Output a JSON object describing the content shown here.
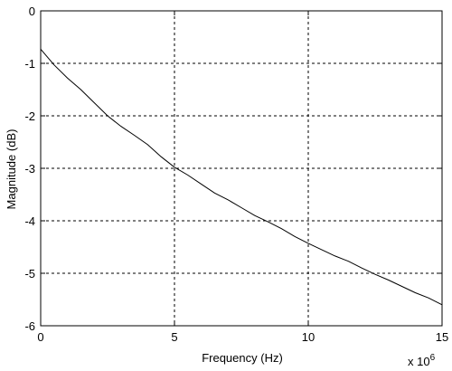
{
  "chart_data": {
    "type": "line",
    "xlabel": "Frequency (Hz)",
    "ylabel": "Magnitude (dB)",
    "x_multiplier_label": "x 10",
    "x_multiplier_exponent": "6",
    "xlim": [
      0,
      15
    ],
    "ylim": [
      -6,
      0
    ],
    "x_ticks": [
      0,
      5,
      10,
      15
    ],
    "y_ticks": [
      0,
      -1,
      -2,
      -3,
      -4,
      -5,
      -6
    ],
    "x_tick_labels": [
      "0",
      "5",
      "10",
      "15"
    ],
    "y_tick_labels": [
      "0",
      "-1",
      "-2",
      "-3",
      "-4",
      "-5",
      "-6"
    ],
    "grid": true,
    "grid_style": "dashed",
    "series": [
      {
        "color": "#000000",
        "x": [
          0,
          0.5,
          1,
          1.5,
          2,
          2.5,
          3,
          3.5,
          4,
          4.5,
          5,
          5.5,
          6,
          6.5,
          7,
          7.5,
          8,
          8.5,
          9,
          9.5,
          10,
          10.5,
          11,
          11.5,
          12,
          12.5,
          13,
          13.5,
          14,
          14.5,
          15
        ],
        "y": [
          -0.73,
          -1.03,
          -1.28,
          -1.5,
          -1.75,
          -2.0,
          -2.2,
          -2.37,
          -2.55,
          -2.78,
          -2.98,
          -3.13,
          -3.3,
          -3.47,
          -3.6,
          -3.75,
          -3.9,
          -4.02,
          -4.15,
          -4.3,
          -4.43,
          -4.55,
          -4.67,
          -4.77,
          -4.9,
          -5.02,
          -5.13,
          -5.25,
          -5.37,
          -5.47,
          -5.6
        ]
      }
    ]
  }
}
